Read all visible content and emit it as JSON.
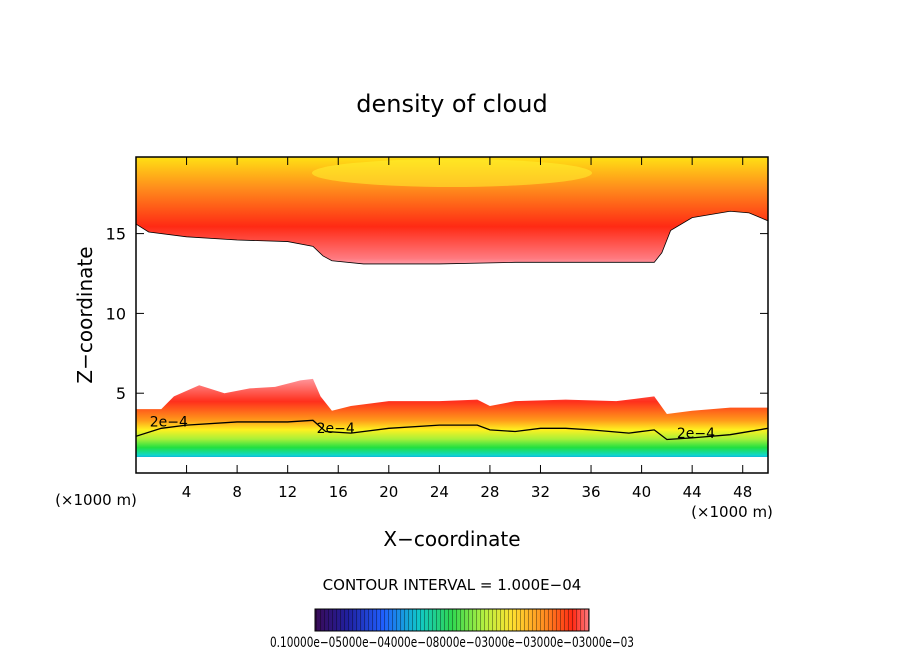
{
  "chart_data": {
    "type": "heatmap",
    "title": "density of cloud",
    "xlabel": "X−coordinate",
    "ylabel": "Z−coordinate",
    "x_unit_left": "(×1000 m)",
    "x_unit_right": "(×1000 m)",
    "xlim": [
      0,
      50
    ],
    "ylim": [
      0,
      19.8
    ],
    "x_ticks": [
      4,
      8,
      12,
      16,
      20,
      24,
      28,
      32,
      36,
      40,
      44,
      48
    ],
    "x_tick_labels": [
      "4",
      "8",
      "12",
      "16",
      "20",
      "24",
      "28",
      "32",
      "36",
      "40",
      "44",
      "48"
    ],
    "y_ticks": [
      5,
      10,
      15
    ],
    "y_tick_labels": [
      "5",
      "10",
      "15"
    ],
    "contour_interval_text": "CONTOUR INTERVAL = 1.000E−04",
    "contour_labels": [
      {
        "text": "2e−4",
        "x": 2.6,
        "z": 2.9
      },
      {
        "text": "2e−4",
        "x": 15.8,
        "z": 2.5
      },
      {
        "text": "2e−4",
        "x": 44.3,
        "z": 2.2
      }
    ],
    "colorbar_labels_text": "0.10000e−05000e−04000e−08000e−03000e−03000e−03000e−03",
    "colorbar_range": [
      0.0001,
      0.0003
    ],
    "grid": false,
    "legend": "colorbar bottom",
    "upper_layer": {
      "top_z": 19.8,
      "bottom_edge": [
        [
          0,
          15.6
        ],
        [
          1,
          15.1
        ],
        [
          4,
          14.8
        ],
        [
          8,
          14.6
        ],
        [
          12,
          14.5
        ],
        [
          14,
          14.2
        ],
        [
          14.8,
          13.6
        ],
        [
          15.5,
          13.3
        ],
        [
          18,
          13.1
        ],
        [
          24,
          13.1
        ],
        [
          30,
          13.2
        ],
        [
          36,
          13.2
        ],
        [
          41,
          13.2
        ],
        [
          41.6,
          13.8
        ],
        [
          42.3,
          15.2
        ],
        [
          44,
          16.0
        ],
        [
          47,
          16.4
        ],
        [
          48.5,
          16.3
        ],
        [
          50,
          15.8
        ]
      ],
      "peak_density": {
        "x": 25,
        "z": 18.8
      }
    },
    "lower_layer": {
      "base_z": 1.0,
      "top_edge": [
        [
          0,
          4.0
        ],
        [
          2,
          4.0
        ],
        [
          3,
          4.8
        ],
        [
          5,
          5.5
        ],
        [
          7,
          5.0
        ],
        [
          9,
          5.3
        ],
        [
          11,
          5.4
        ],
        [
          13,
          5.8
        ],
        [
          14,
          5.9
        ],
        [
          14.6,
          4.8
        ],
        [
          15.5,
          3.9
        ],
        [
          17,
          4.2
        ],
        [
          20,
          4.5
        ],
        [
          24,
          4.5
        ],
        [
          27,
          4.6
        ],
        [
          28,
          4.2
        ],
        [
          30,
          4.5
        ],
        [
          34,
          4.6
        ],
        [
          38,
          4.5
        ],
        [
          40,
          4.7
        ],
        [
          41,
          4.8
        ],
        [
          42,
          3.7
        ],
        [
          44,
          3.9
        ],
        [
          47,
          4.1
        ],
        [
          50,
          4.1
        ]
      ],
      "contour_2e4": [
        [
          0,
          2.3
        ],
        [
          2,
          2.8
        ],
        [
          4,
          3.0
        ],
        [
          8,
          3.2
        ],
        [
          12,
          3.2
        ],
        [
          14,
          3.3
        ],
        [
          15,
          2.6
        ],
        [
          17,
          2.5
        ],
        [
          20,
          2.8
        ],
        [
          24,
          3.0
        ],
        [
          27,
          3.0
        ],
        [
          28,
          2.7
        ],
        [
          30,
          2.6
        ],
        [
          32,
          2.8
        ],
        [
          34,
          2.8
        ],
        [
          36,
          2.7
        ],
        [
          39,
          2.5
        ],
        [
          41,
          2.7
        ],
        [
          42,
          2.1
        ],
        [
          44,
          2.2
        ],
        [
          47,
          2.4
        ],
        [
          50,
          2.8
        ]
      ]
    }
  }
}
